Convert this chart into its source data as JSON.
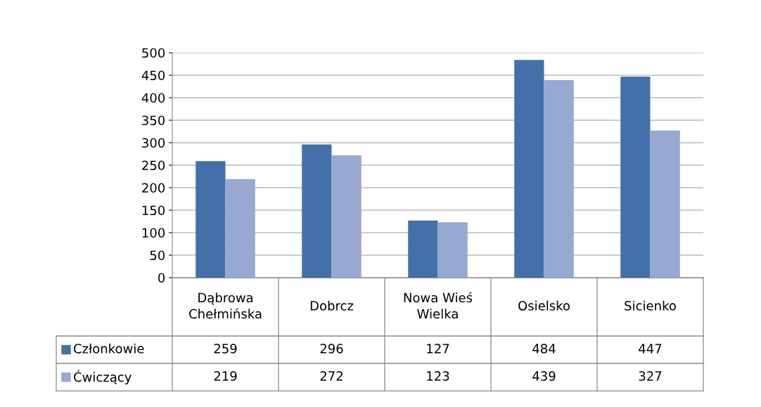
{
  "chart_data": {
    "type": "bar",
    "categories": [
      "Dąbrowa Chełmińska",
      "Dobrcz",
      "Nowa Wieś Wielka",
      "Osielsko",
      "Sicienko"
    ],
    "series": [
      {
        "name": "Członkowie",
        "color": "#4470aa",
        "values": [
          259,
          296,
          127,
          484,
          447
        ]
      },
      {
        "name": "Ćwiczący",
        "color": "#96a9d3",
        "values": [
          219,
          272,
          123,
          439,
          327
        ]
      }
    ],
    "ylim": [
      0,
      500
    ],
    "yticks": [
      0,
      50,
      100,
      150,
      200,
      250,
      300,
      350,
      400,
      450,
      500
    ],
    "grid": "y",
    "legend": "bottom left",
    "data_labels": true
  }
}
